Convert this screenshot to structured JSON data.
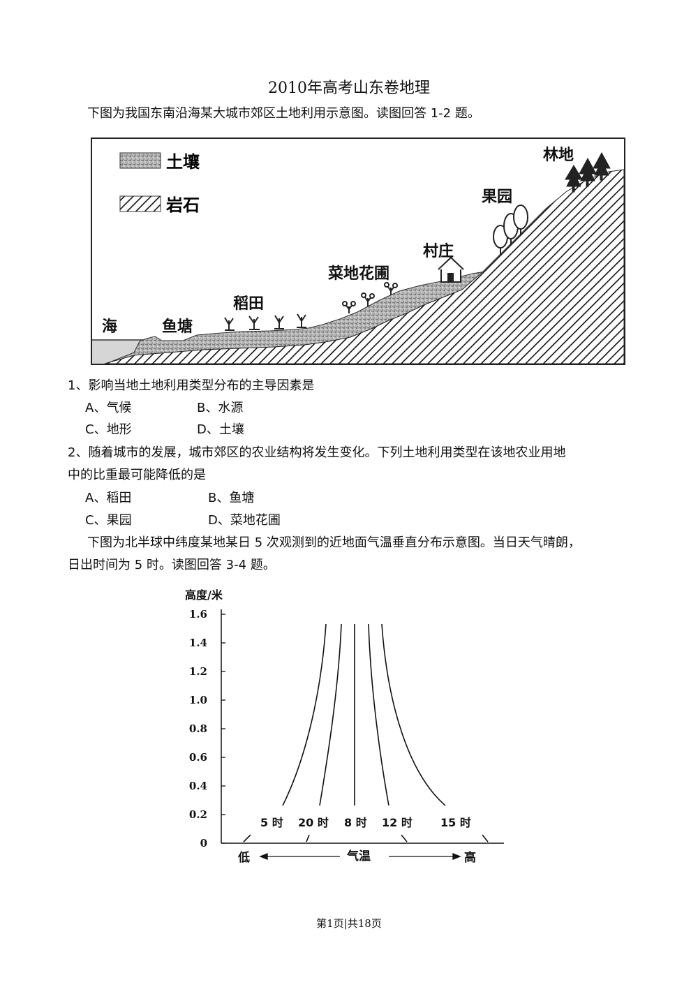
{
  "title": "2010年高考山东卷地理",
  "intro1": "下图为我国东南沿海某大城市郊区土地利用示意图。读图回答 1-2 题。",
  "figure1": {
    "legend": [
      {
        "label": "土壤",
        "pattern": "soil"
      },
      {
        "label": "岩石",
        "pattern": "rock"
      }
    ],
    "labels": {
      "sea": "海",
      "fish_pond": "鱼塘",
      "paddy": "稻田",
      "vegetable_flower": "菜地花圃",
      "village": "村庄",
      "orchard": "果园",
      "forest": "林地"
    }
  },
  "q1": {
    "stem": "1、影响当地土地利用类型分布的主导因素是",
    "options": [
      "A、气候",
      "B、水源",
      "C、地形",
      "D、土壤"
    ]
  },
  "q2": {
    "stem_line1": "2、随着城市的发展，城市郊区的农业结构将发生变化。下列土地利用类型在该地农业用地",
    "stem_line2": "中的比重最可能降低的是",
    "options": [
      "A、稻田",
      "B、鱼塘",
      "C、果园",
      "D、菜地花圃"
    ]
  },
  "intro2_line1": "下图为北半球中纬度某地某日 5 次观测到的近地面气温垂直分布示意图。当日天气晴朗，",
  "intro2_line2": "日出时间为 5 时。读图回答 3-4 题。",
  "chart_data": {
    "type": "line",
    "ylabel": "高度/米",
    "xlabel": "气温",
    "x_low_label": "低",
    "x_high_label": "高",
    "y_ticks": [
      "1.6",
      "1.4",
      "1.2",
      "1.0",
      "0.8",
      "0.6",
      "0.4",
      "0.2",
      "0"
    ],
    "ylim": [
      0,
      1.6
    ],
    "grid": false,
    "series": [
      {
        "name": "5 时",
        "shape": "temperature increases with height (inversion)"
      },
      {
        "name": "20 时",
        "shape": "slight inversion"
      },
      {
        "name": "8 时",
        "shape": "isothermal"
      },
      {
        "name": "12 时",
        "shape": "temperature decreases with height"
      },
      {
        "name": "15 时",
        "shape": "temperature decreases strongly with height"
      }
    ]
  },
  "footer": "第1页|共18页"
}
